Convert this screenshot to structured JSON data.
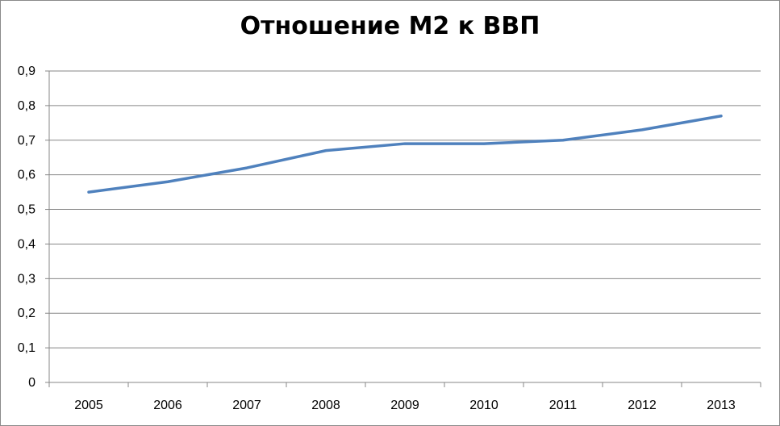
{
  "chart_data": {
    "type": "line",
    "title": "Отношение М2 к ВВП",
    "xlabel": "",
    "ylabel": "",
    "categories": [
      "2005",
      "2006",
      "2007",
      "2008",
      "2009",
      "2010",
      "2011",
      "2012",
      "2013"
    ],
    "series": [
      {
        "values": [
          0.55,
          0.58,
          0.62,
          0.67,
          0.69,
          0.69,
          0.7,
          0.73,
          0.77
        ],
        "color": "#4f81bd"
      }
    ],
    "ylim": [
      0,
      0.9
    ],
    "yticks": [
      0,
      0.1,
      0.2,
      0.3,
      0.4,
      0.5,
      0.6,
      0.7,
      0.8,
      0.9
    ],
    "ytick_labels": [
      "0",
      "0,1",
      "0,2",
      "0,3",
      "0,4",
      "0,5",
      "0,6",
      "0,7",
      "0,8",
      "0,9"
    ],
    "grid": "horizontal",
    "legend": "none"
  }
}
